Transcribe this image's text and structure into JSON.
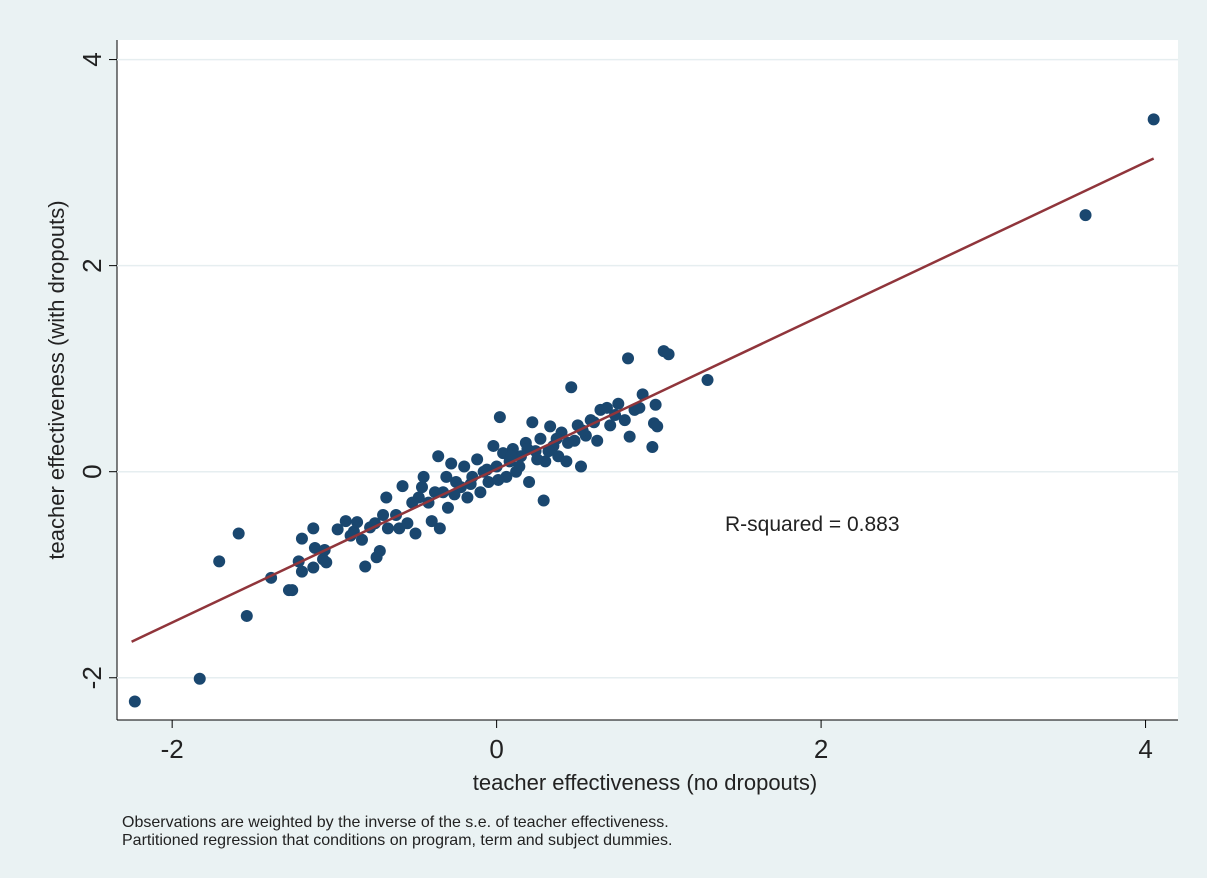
{
  "chart_data": {
    "type": "scatter",
    "x_label": "teacher effectiveness (no dropouts)",
    "y_label": "teacher effectiveness (with dropouts)",
    "annotation": "R-squared = 0.883",
    "notes": [
      "Observations are weighted by the inverse of the s.e. of teacher effectiveness.",
      "Partitioned regression that conditions on program, term and subject dummies."
    ],
    "xlim": [
      -2.34,
      4.2
    ],
    "ylim": [
      -2.41,
      4.19
    ],
    "xticks": [
      -2,
      0,
      2,
      4
    ],
    "yticks": [
      -2,
      0,
      2,
      4
    ],
    "grid": true,
    "series": [
      {
        "color": "#1a476f",
        "x": [
          -2.23,
          -1.83,
          -1.71,
          -1.59,
          -1.54,
          -1.39,
          -1.28,
          -1.26,
          -1.22,
          -1.2,
          -1.2,
          -1.13,
          -1.13,
          -1.12,
          -1.07,
          -1.06,
          -1.05,
          -0.98,
          -0.93,
          -0.88,
          -0.86,
          -0.83,
          -0.81,
          -0.78,
          -0.74,
          -0.72,
          -0.7,
          -0.68,
          -0.67,
          -0.6,
          -0.58,
          -0.55,
          -0.5,
          -0.48,
          -0.45,
          -0.42,
          -0.4,
          -0.36,
          -0.35,
          -0.33,
          -0.3,
          -0.28,
          -0.25,
          -0.22,
          -0.2,
          -0.18,
          -0.15,
          -0.12,
          -0.1,
          -0.08,
          -0.05,
          -0.02,
          0.0,
          0.02,
          0.04,
          0.06,
          0.08,
          0.1,
          0.12,
          0.15,
          0.18,
          0.2,
          0.22,
          0.24,
          0.27,
          0.29,
          0.3,
          0.33,
          0.35,
          0.38,
          0.4,
          0.43,
          0.46,
          0.48,
          0.5,
          0.52,
          0.55,
          0.58,
          0.62,
          0.64,
          0.68,
          0.7,
          0.73,
          0.75,
          0.79,
          0.81,
          0.82,
          0.85,
          0.88,
          0.9,
          0.96,
          0.97,
          0.98,
          0.99,
          1.03,
          1.06,
          1.3,
          3.63,
          4.05,
          -0.52,
          -0.46,
          -0.38,
          -0.31,
          -0.26,
          -0.16,
          -0.06,
          0.01,
          0.09,
          0.14,
          0.19,
          0.25,
          0.32,
          0.37,
          0.44,
          0.53,
          0.6,
          -0.62,
          -0.9,
          -0.75
        ],
        "values": [
          -2.23,
          -2.01,
          -0.87,
          -0.6,
          -1.4,
          -1.03,
          -1.15,
          -1.15,
          -0.87,
          -0.97,
          -0.65,
          -0.55,
          -0.93,
          -0.74,
          -0.85,
          -0.76,
          -0.88,
          -0.56,
          -0.48,
          -0.58,
          -0.49,
          -0.66,
          -0.92,
          -0.54,
          -0.83,
          -0.77,
          -0.42,
          -0.25,
          -0.55,
          -0.55,
          -0.14,
          -0.5,
          -0.6,
          -0.25,
          -0.05,
          -0.3,
          -0.48,
          0.15,
          -0.55,
          -0.2,
          -0.35,
          0.08,
          -0.1,
          -0.15,
          0.05,
          -0.25,
          -0.05,
          0.12,
          -0.2,
          0.0,
          -0.1,
          0.25,
          0.05,
          0.53,
          0.18,
          -0.05,
          0.1,
          0.22,
          0.0,
          0.15,
          0.28,
          -0.1,
          0.48,
          0.2,
          0.32,
          -0.28,
          0.1,
          0.44,
          0.25,
          0.15,
          0.38,
          0.1,
          0.82,
          0.3,
          0.45,
          0.05,
          0.35,
          0.5,
          0.3,
          0.6,
          0.62,
          0.45,
          0.55,
          0.66,
          0.5,
          1.1,
          0.34,
          0.6,
          0.62,
          0.75,
          0.24,
          0.47,
          0.65,
          0.44,
          1.17,
          1.14,
          0.89,
          2.49,
          3.42,
          -0.3,
          -0.15,
          -0.2,
          -0.05,
          -0.22,
          -0.12,
          0.02,
          -0.08,
          0.15,
          0.05,
          0.22,
          0.12,
          0.2,
          0.32,
          0.28,
          0.4,
          0.48,
          -0.42,
          -0.62,
          -0.5
        ]
      },
      {
        "color": "#90353b",
        "x": [
          -2.25,
          4.05
        ],
        "values": [
          -1.65,
          3.04
        ],
        "line": true
      }
    ]
  }
}
